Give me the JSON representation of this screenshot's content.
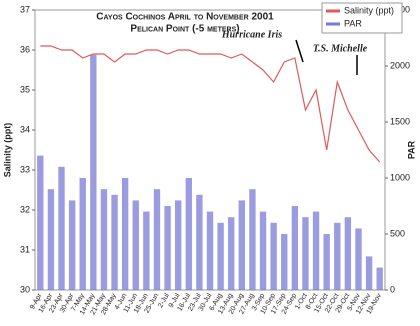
{
  "chart_data": {
    "type": "line-bar",
    "title": "Cayos Cochinos April to November 2001",
    "subtitle": "Pelican Point (-5 meters)",
    "y_label": "Salinity (ppt)",
    "y2_label": "PAR",
    "annotations": [
      "Hurricane Iris",
      "T.S. Michelle"
    ],
    "categories": [
      "9-Apr",
      "16-Apr",
      "23-Apr",
      "30-Apr",
      "7-May",
      "14-May",
      "21-May",
      "28-May",
      "4-Jun",
      "11-Jun",
      "18-Jun",
      "25-Jun",
      "2-Jul",
      "9-Jul",
      "16-Jul",
      "23-Jul",
      "30-Jul",
      "6-Aug",
      "13-Aug",
      "20-Aug",
      "27-Aug",
      "3-Sep",
      "10-Sep",
      "17-Sep",
      "24-Sep",
      "1-Oct",
      "8-Oct",
      "15-Oct",
      "22-Oct",
      "29-Oct",
      "5-Nov",
      "12-Nov",
      "19-Nov"
    ],
    "series": [
      {
        "name": "Salinity (ppt)",
        "color": "#e05a5a",
        "kind": "line",
        "values": [
          36.1,
          36.1,
          36.0,
          36.0,
          35.8,
          35.9,
          35.9,
          35.7,
          35.9,
          35.9,
          36.0,
          36.0,
          35.9,
          36.0,
          36.0,
          35.9,
          35.9,
          35.9,
          35.8,
          35.9,
          35.7,
          35.5,
          35.2,
          35.7,
          35.8,
          34.5,
          35.0,
          33.5,
          35.2,
          34.5,
          34.0,
          33.5,
          33.2
        ]
      },
      {
        "name": "PAR",
        "color": "#7a7ad4",
        "kind": "bar",
        "axis": "y2",
        "values": [
          1200,
          900,
          1100,
          800,
          1000,
          2100,
          900,
          850,
          1000,
          800,
          700,
          900,
          750,
          800,
          1000,
          850,
          700,
          600,
          650,
          800,
          900,
          700,
          600,
          500,
          750,
          650,
          700,
          500,
          600,
          650,
          550,
          300,
          200
        ]
      }
    ],
    "ylim": [
      30,
      37
    ],
    "yticks": [
      30,
      31,
      32,
      33,
      34,
      35,
      36,
      37
    ],
    "y2lim": [
      0,
      2500
    ],
    "y2ticks": [
      0,
      500,
      1000,
      1500,
      2000,
      2500
    ]
  }
}
